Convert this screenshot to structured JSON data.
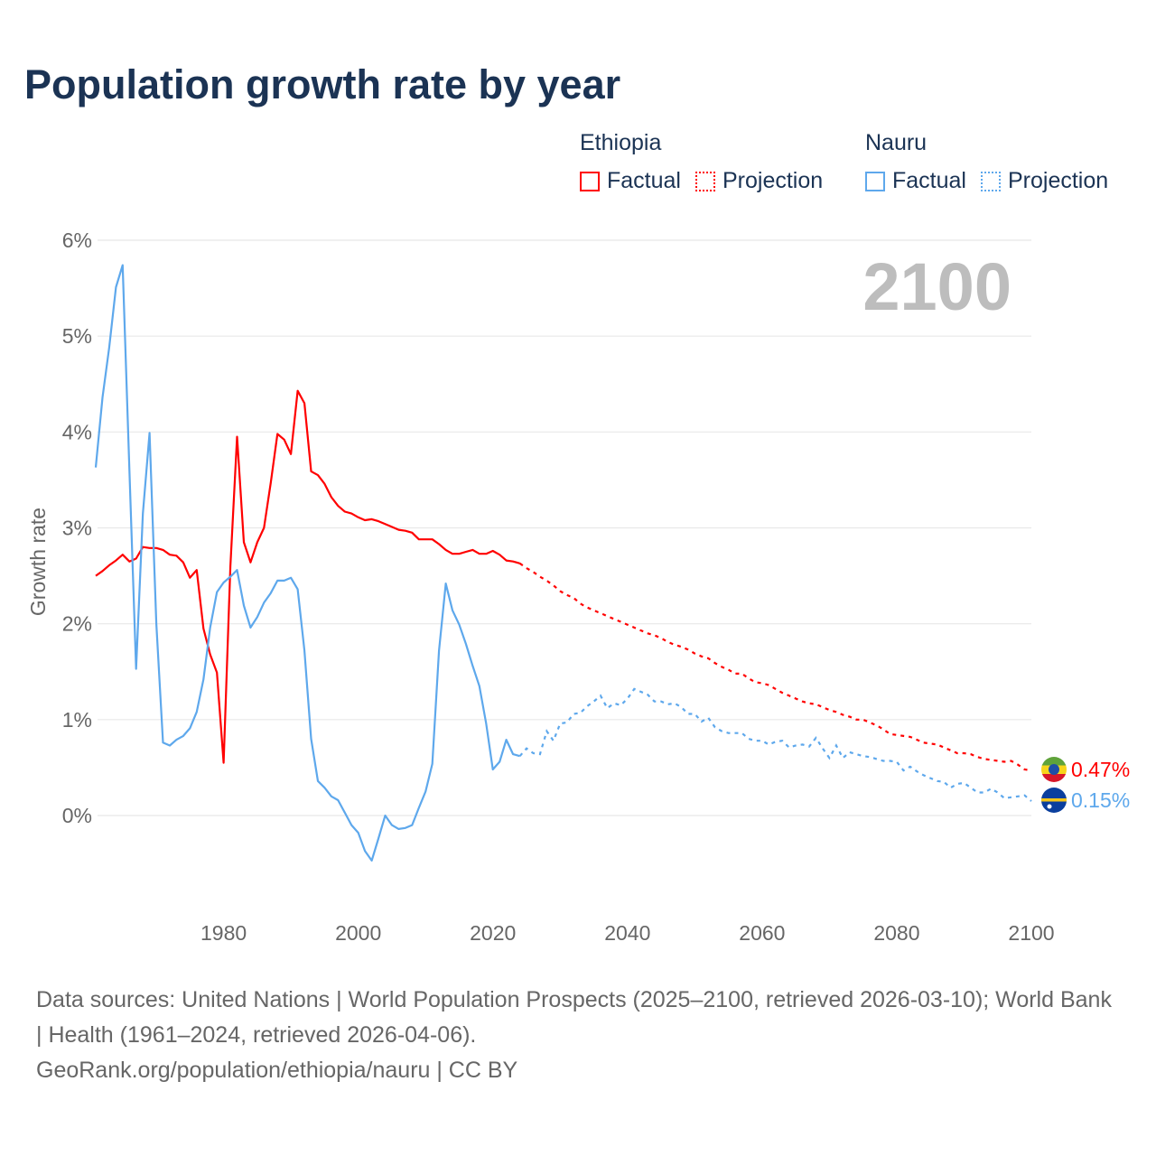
{
  "title": "Population growth rate by year",
  "legend": {
    "groups": [
      {
        "name": "Ethiopia",
        "factual": "Factual",
        "projection": "Projection",
        "color": "#ff0000"
      },
      {
        "name": "Nauru",
        "factual": "Factual",
        "projection": "Projection",
        "color": "#5ea8ec"
      }
    ]
  },
  "year_display": "2100",
  "footer": {
    "sources": "Data sources: United Nations | World Population Prospects (2025–2100, retrieved 2026-03-10); World Bank | Health (1961–2024, retrieved 2026-04-06).",
    "link": "GeoRank.org/population/ethiopia/nauru | CC BY"
  },
  "chart_data": {
    "type": "line",
    "title": "Population growth rate by year",
    "xlabel": "",
    "ylabel": "Growth rate",
    "xlim": [
      1961,
      2100
    ],
    "ylim": [
      -0.9,
      6
    ],
    "x_ticks": [
      1980,
      2000,
      2020,
      2040,
      2060,
      2080,
      2100
    ],
    "x_tick_labels": [
      "1980",
      "2000",
      "2020",
      "2040",
      "2060",
      "2080",
      "2100"
    ],
    "y_ticks": [
      0,
      1,
      2,
      3,
      4,
      5,
      6
    ],
    "y_tick_labels": [
      "0%",
      "1%",
      "2%",
      "3%",
      "4%",
      "5%",
      "6%"
    ],
    "grid": true,
    "legend_position": "top-right",
    "series": [
      {
        "name": "Ethiopia",
        "color": "#ff0000",
        "end_label": "0.47%",
        "factual": {
          "start_year": 1961,
          "values": [
            2.5,
            2.55,
            2.61,
            2.66,
            2.72,
            2.65,
            2.68,
            2.8,
            2.79,
            2.79,
            2.77,
            2.72,
            2.71,
            2.64,
            2.48,
            2.56,
            1.95,
            1.68,
            1.49,
            0.55,
            2.6,
            3.95,
            2.85,
            2.64,
            2.85,
            3.0,
            3.47,
            3.98,
            3.92,
            3.77,
            4.43,
            4.3,
            3.59,
            3.55,
            3.46,
            3.32,
            3.23,
            3.17,
            3.15,
            3.11,
            3.08,
            3.09,
            3.07,
            3.04,
            3.01,
            2.98,
            2.97,
            2.95,
            2.88,
            2.88,
            2.88,
            2.83,
            2.77,
            2.73,
            2.73,
            2.75,
            2.77,
            2.73,
            2.73,
            2.76,
            2.72,
            2.66,
            2.65,
            2.63
          ]
        },
        "projection": {
          "start_year": 2025,
          "values": [
            2.58,
            2.54,
            2.49,
            2.45,
            2.4,
            2.34,
            2.3,
            2.27,
            2.21,
            2.17,
            2.14,
            2.11,
            2.08,
            2.05,
            2.02,
            1.99,
            1.96,
            1.93,
            1.9,
            1.88,
            1.85,
            1.81,
            1.78,
            1.76,
            1.73,
            1.69,
            1.66,
            1.64,
            1.59,
            1.55,
            1.52,
            1.48,
            1.48,
            1.43,
            1.39,
            1.38,
            1.36,
            1.32,
            1.28,
            1.25,
            1.22,
            1.19,
            1.17,
            1.16,
            1.13,
            1.1,
            1.08,
            1.05,
            1.03,
            1.0,
            1.0,
            0.97,
            0.94,
            0.9,
            0.85,
            0.84,
            0.83,
            0.82,
            0.79,
            0.76,
            0.75,
            0.74,
            0.71,
            0.68,
            0.65,
            0.65,
            0.64,
            0.61,
            0.59,
            0.58,
            0.57,
            0.56,
            0.57,
            0.53,
            0.48,
            0.47
          ]
        }
      },
      {
        "name": "Nauru",
        "color": "#5ea8ec",
        "end_label": "0.15%",
        "factual": {
          "start_year": 1961,
          "values": [
            3.63,
            4.36,
            4.88,
            5.51,
            5.74,
            3.6,
            1.53,
            3.15,
            3.99,
            2.0,
            0.76,
            0.73,
            0.79,
            0.83,
            0.91,
            1.08,
            1.42,
            1.96,
            2.33,
            2.43,
            2.49,
            2.56,
            2.19,
            1.96,
            2.07,
            2.22,
            2.32,
            2.45,
            2.45,
            2.48,
            2.36,
            1.72,
            0.8,
            0.36,
            0.29,
            0.2,
            0.16,
            0.03,
            -0.1,
            -0.18,
            -0.37,
            -0.47,
            -0.24,
            0.0,
            -0.1,
            -0.14,
            -0.13,
            -0.1,
            0.08,
            0.25,
            0.54,
            1.72,
            2.42,
            2.14,
            1.99,
            1.79,
            1.56,
            1.35,
            0.96,
            0.48,
            0.56,
            0.79,
            0.64,
            0.62
          ]
        },
        "projection": {
          "start_year": 2025,
          "values": [
            0.7,
            0.65,
            0.64,
            0.88,
            0.78,
            0.96,
            0.97,
            1.06,
            1.07,
            1.14,
            1.19,
            1.25,
            1.12,
            1.17,
            1.15,
            1.22,
            1.32,
            1.29,
            1.26,
            1.19,
            1.19,
            1.16,
            1.17,
            1.13,
            1.06,
            1.06,
            0.98,
            1.02,
            0.92,
            0.88,
            0.86,
            0.86,
            0.86,
            0.8,
            0.78,
            0.78,
            0.74,
            0.77,
            0.78,
            0.71,
            0.73,
            0.74,
            0.72,
            0.81,
            0.7,
            0.6,
            0.73,
            0.6,
            0.66,
            0.64,
            0.62,
            0.61,
            0.59,
            0.57,
            0.57,
            0.56,
            0.47,
            0.51,
            0.46,
            0.42,
            0.39,
            0.36,
            0.35,
            0.29,
            0.33,
            0.34,
            0.29,
            0.24,
            0.24,
            0.28,
            0.24,
            0.18,
            0.19,
            0.2,
            0.21,
            0.15
          ]
        }
      }
    ]
  }
}
